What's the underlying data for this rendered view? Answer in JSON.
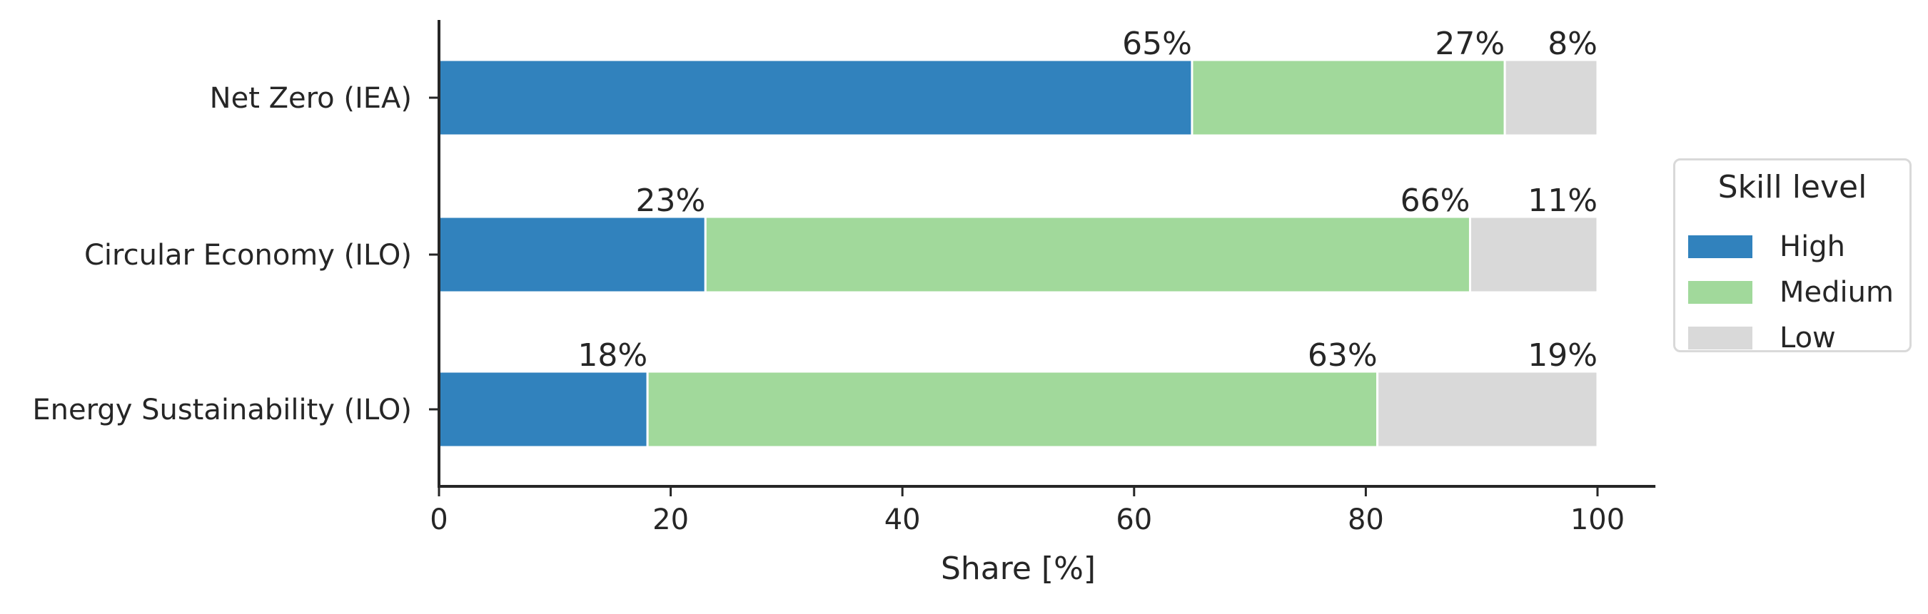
{
  "chart_data": {
    "type": "bar",
    "orientation": "horizontal",
    "stacked": true,
    "categories": [
      "Net Zero (IEA)",
      "Circular Economy (ILO)",
      "Energy Sustainability (ILO)"
    ],
    "series": [
      {
        "name": "High",
        "values": [
          65,
          23,
          18
        ],
        "labels": [
          "65%",
          "23%",
          "18%"
        ],
        "color": "#3182bd"
      },
      {
        "name": "Medium",
        "values": [
          27,
          66,
          63
        ],
        "labels": [
          "27%",
          "66%",
          "63%"
        ],
        "color": "#a1d99b"
      },
      {
        "name": "Low",
        "values": [
          8,
          11,
          19
        ],
        "labels": [
          "8%",
          "11%",
          "19%"
        ],
        "color": "#d9d9d9"
      }
    ],
    "xlabel": "Share [%]",
    "ylabel": "",
    "xlim": [
      0,
      105
    ],
    "xticks": [
      0,
      20,
      40,
      60,
      80,
      100
    ],
    "grid": false,
    "legend": {
      "title": "Skill level",
      "placement": "right"
    }
  }
}
